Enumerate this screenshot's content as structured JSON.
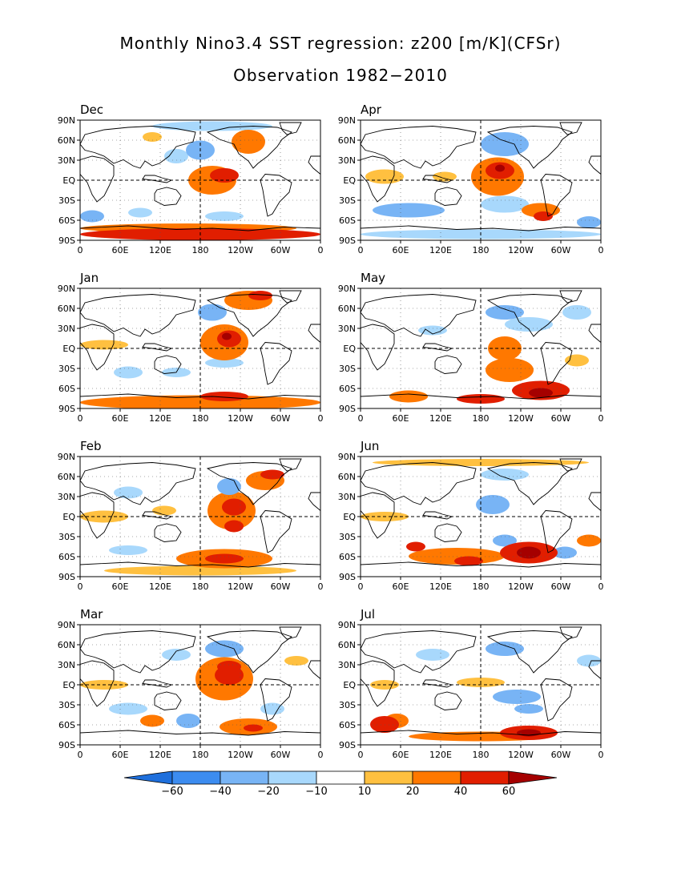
{
  "title_line1": "Monthly Nino3.4 SST regression: z200 [m/K](CFSr)",
  "title_line2": "Observation 1982−2010",
  "y_tick_labels": [
    "90N",
    "60N",
    "30N",
    "EQ",
    "30S",
    "60S",
    "90S"
  ],
  "x_tick_labels": [
    "0",
    "60E",
    "120E",
    "180",
    "120W",
    "60W",
    "0"
  ],
  "panels": [
    {
      "month": "Dec",
      "blobs": [
        [
          0.55,
          0.5,
          0.1,
          0.12,
          2
        ],
        [
          0.6,
          0.46,
          0.06,
          0.06,
          3
        ],
        [
          0.7,
          0.18,
          0.07,
          0.1,
          2
        ],
        [
          0.3,
          0.14,
          0.04,
          0.04,
          1
        ],
        [
          0.5,
          0.25,
          0.06,
          0.08,
          -2
        ],
        [
          0.4,
          0.3,
          0.05,
          0.06,
          -1
        ],
        [
          0.5,
          0.95,
          0.5,
          0.05,
          3
        ],
        [
          0.45,
          0.9,
          0.45,
          0.04,
          2
        ],
        [
          0.05,
          0.8,
          0.05,
          0.05,
          -2
        ],
        [
          0.25,
          0.77,
          0.05,
          0.04,
          -1
        ],
        [
          0.6,
          0.8,
          0.08,
          0.04,
          -1
        ],
        [
          0.55,
          0.05,
          0.25,
          0.04,
          -1
        ]
      ]
    },
    {
      "month": "Apr",
      "blobs": [
        [
          0.57,
          0.47,
          0.11,
          0.16,
          2
        ],
        [
          0.58,
          0.42,
          0.06,
          0.07,
          3
        ],
        [
          0.58,
          0.4,
          0.02,
          0.03,
          4
        ],
        [
          0.1,
          0.47,
          0.08,
          0.06,
          1
        ],
        [
          0.35,
          0.47,
          0.05,
          0.04,
          1
        ],
        [
          0.6,
          0.2,
          0.1,
          0.1,
          -2
        ],
        [
          0.75,
          0.75,
          0.08,
          0.06,
          2
        ],
        [
          0.76,
          0.8,
          0.04,
          0.04,
          3
        ],
        [
          0.2,
          0.75,
          0.15,
          0.06,
          -2
        ],
        [
          0.6,
          0.7,
          0.1,
          0.07,
          -1
        ],
        [
          0.95,
          0.85,
          0.05,
          0.05,
          -2
        ],
        [
          0.5,
          0.95,
          0.5,
          0.04,
          -1
        ]
      ]
    },
    {
      "month": "Jan",
      "blobs": [
        [
          0.6,
          0.45,
          0.1,
          0.15,
          2
        ],
        [
          0.62,
          0.42,
          0.05,
          0.07,
          3
        ],
        [
          0.61,
          0.4,
          0.02,
          0.03,
          4
        ],
        [
          0.7,
          0.1,
          0.1,
          0.08,
          2
        ],
        [
          0.75,
          0.06,
          0.05,
          0.04,
          3
        ],
        [
          0.55,
          0.2,
          0.06,
          0.07,
          -2
        ],
        [
          0.1,
          0.47,
          0.1,
          0.04,
          1
        ],
        [
          0.5,
          0.95,
          0.5,
          0.06,
          2
        ],
        [
          0.6,
          0.9,
          0.1,
          0.04,
          3
        ],
        [
          0.2,
          0.7,
          0.06,
          0.05,
          -1
        ],
        [
          0.4,
          0.7,
          0.06,
          0.04,
          -1
        ],
        [
          0.6,
          0.62,
          0.08,
          0.04,
          -1
        ]
      ]
    },
    {
      "month": "May",
      "blobs": [
        [
          0.6,
          0.5,
          0.07,
          0.1,
          2
        ],
        [
          0.62,
          0.68,
          0.1,
          0.1,
          2
        ],
        [
          0.75,
          0.85,
          0.12,
          0.08,
          3
        ],
        [
          0.75,
          0.87,
          0.05,
          0.04,
          4
        ],
        [
          0.2,
          0.9,
          0.08,
          0.05,
          2
        ],
        [
          0.5,
          0.92,
          0.1,
          0.04,
          3
        ],
        [
          0.6,
          0.2,
          0.08,
          0.06,
          -2
        ],
        [
          0.7,
          0.3,
          0.1,
          0.06,
          -1
        ],
        [
          0.3,
          0.35,
          0.06,
          0.04,
          -1
        ],
        [
          0.9,
          0.2,
          0.06,
          0.06,
          -1
        ],
        [
          0.9,
          0.6,
          0.05,
          0.05,
          1
        ]
      ]
    },
    {
      "month": "Feb",
      "blobs": [
        [
          0.63,
          0.45,
          0.1,
          0.16,
          2
        ],
        [
          0.64,
          0.42,
          0.05,
          0.07,
          3
        ],
        [
          0.64,
          0.58,
          0.04,
          0.05,
          3
        ],
        [
          0.77,
          0.2,
          0.08,
          0.08,
          2
        ],
        [
          0.8,
          0.15,
          0.05,
          0.04,
          3
        ],
        [
          0.1,
          0.5,
          0.1,
          0.05,
          1
        ],
        [
          0.35,
          0.45,
          0.05,
          0.04,
          1
        ],
        [
          0.6,
          0.85,
          0.2,
          0.08,
          2
        ],
        [
          0.6,
          0.85,
          0.08,
          0.04,
          3
        ],
        [
          0.62,
          0.25,
          0.05,
          0.07,
          -2
        ],
        [
          0.2,
          0.3,
          0.06,
          0.05,
          -1
        ],
        [
          0.2,
          0.78,
          0.08,
          0.04,
          -1
        ],
        [
          0.5,
          0.95,
          0.4,
          0.04,
          1
        ]
      ]
    },
    {
      "month": "Jun",
      "blobs": [
        [
          0.4,
          0.83,
          0.2,
          0.07,
          2
        ],
        [
          0.23,
          0.75,
          0.04,
          0.04,
          3
        ],
        [
          0.45,
          0.87,
          0.06,
          0.04,
          3
        ],
        [
          0.7,
          0.8,
          0.12,
          0.09,
          3
        ],
        [
          0.7,
          0.8,
          0.05,
          0.05,
          4
        ],
        [
          0.95,
          0.7,
          0.05,
          0.05,
          2
        ],
        [
          0.55,
          0.4,
          0.07,
          0.08,
          -2
        ],
        [
          0.6,
          0.7,
          0.05,
          0.05,
          -2
        ],
        [
          0.85,
          0.8,
          0.05,
          0.05,
          -2
        ],
        [
          0.6,
          0.15,
          0.1,
          0.05,
          -1
        ],
        [
          0.1,
          0.5,
          0.1,
          0.04,
          1
        ],
        [
          0.5,
          0.05,
          0.45,
          0.03,
          1
        ]
      ]
    },
    {
      "month": "Mar",
      "blobs": [
        [
          0.6,
          0.45,
          0.12,
          0.18,
          2
        ],
        [
          0.62,
          0.42,
          0.06,
          0.08,
          3
        ],
        [
          0.62,
          0.35,
          0.05,
          0.05,
          3
        ],
        [
          0.6,
          0.2,
          0.08,
          0.07,
          -2
        ],
        [
          0.4,
          0.25,
          0.06,
          0.05,
          -1
        ],
        [
          0.1,
          0.5,
          0.1,
          0.04,
          1
        ],
        [
          0.9,
          0.3,
          0.05,
          0.04,
          1
        ],
        [
          0.7,
          0.85,
          0.12,
          0.07,
          2
        ],
        [
          0.72,
          0.86,
          0.04,
          0.03,
          3
        ],
        [
          0.3,
          0.8,
          0.05,
          0.05,
          2
        ],
        [
          0.45,
          0.8,
          0.05,
          0.06,
          -2
        ],
        [
          0.2,
          0.7,
          0.08,
          0.05,
          -1
        ],
        [
          0.8,
          0.7,
          0.05,
          0.05,
          -1
        ]
      ]
    },
    {
      "month": "Jul",
      "blobs": [
        [
          0.1,
          0.83,
          0.06,
          0.07,
          3
        ],
        [
          0.15,
          0.8,
          0.05,
          0.06,
          2
        ],
        [
          0.7,
          0.9,
          0.12,
          0.06,
          3
        ],
        [
          0.7,
          0.9,
          0.05,
          0.03,
          4
        ],
        [
          0.5,
          0.93,
          0.3,
          0.04,
          2
        ],
        [
          0.65,
          0.6,
          0.1,
          0.06,
          -2
        ],
        [
          0.7,
          0.7,
          0.06,
          0.04,
          -2
        ],
        [
          0.3,
          0.25,
          0.07,
          0.05,
          -1
        ],
        [
          0.6,
          0.2,
          0.08,
          0.06,
          -2
        ],
        [
          0.95,
          0.3,
          0.05,
          0.05,
          -1
        ],
        [
          0.5,
          0.48,
          0.1,
          0.04,
          1
        ],
        [
          0.1,
          0.5,
          0.06,
          0.04,
          1
        ]
      ]
    }
  ],
  "colorbar": {
    "labels": [
      "−60",
      "−40",
      "−20",
      "−10",
      "10",
      "20",
      "40",
      "60"
    ],
    "colors": [
      "#1e6fdc",
      "#3c8cf0",
      "#78b4f5",
      "#a8d8fc",
      "#ffffff",
      "#ffc040",
      "#ff7800",
      "#e11e00",
      "#a50000"
    ]
  },
  "map_colors": {
    "land_outline": "#000000",
    "dashed_line": "#000000"
  }
}
